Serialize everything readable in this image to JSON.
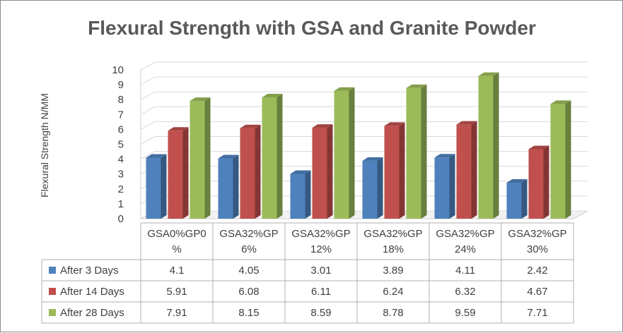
{
  "chart_data": {
    "type": "bar",
    "title": "Flexural Strength with GSA and Granite Powder",
    "xlabel": "",
    "ylabel": "Flexural Strength N/MM",
    "ylim": [
      0,
      10
    ],
    "yticks": [
      "0",
      "1",
      "2",
      "3",
      "4",
      "5",
      "6",
      "7",
      "8",
      "9",
      "10"
    ],
    "categories": [
      [
        "GSA0%GP0",
        "%"
      ],
      [
        "GSA32%GP",
        "6%"
      ],
      [
        "GSA32%GP",
        "12%"
      ],
      [
        "GSA32%GP",
        "18%"
      ],
      [
        "GSA32%GP",
        "24%"
      ],
      [
        "GSA32%GP",
        "30%"
      ]
    ],
    "series": [
      {
        "name": "After 3 Days",
        "color": "#4f81bd",
        "values": [
          4.1,
          4.05,
          3.01,
          3.89,
          4.11,
          2.42
        ],
        "labels": [
          "4.1",
          "4.05",
          "3.01",
          "3.89",
          "4.11",
          "2.42"
        ]
      },
      {
        "name": "After 14 Days",
        "color": "#c0504d",
        "values": [
          5.91,
          6.08,
          6.11,
          6.24,
          6.32,
          4.67
        ],
        "labels": [
          "5.91",
          "6.08",
          "6.11",
          "6.24",
          "6.32",
          "4.67"
        ]
      },
      {
        "name": "After 28 Days",
        "color": "#9bbb59",
        "values": [
          7.91,
          8.15,
          8.59,
          8.78,
          9.59,
          7.71
        ],
        "labels": [
          "7.91",
          "8.15",
          "8.59",
          "8.78",
          "9.59",
          "7.71"
        ]
      }
    ],
    "legend": "data-table-left",
    "grid": true
  }
}
